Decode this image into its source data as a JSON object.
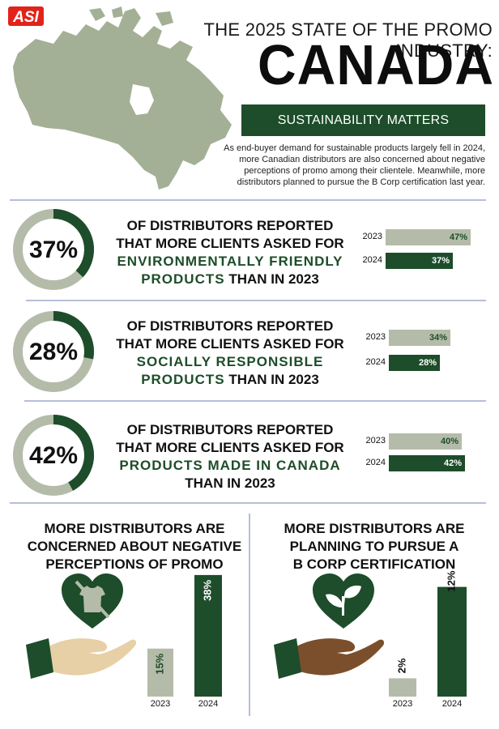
{
  "logo": {
    "text": "ASI"
  },
  "header": {
    "title_line": "THE 2025 STATE OF THE PROMO INDUSTRY:",
    "big_title": "CANADA",
    "banner": "SUSTAINABILITY MATTERS",
    "intro": "As end-buyer demand for sustainable products largely fell in 2024, more Canadian distributors are also concerned about negative perceptions of promo among their clientele. Meanwhile, more distributors planned to pursue the B Corp certification last year."
  },
  "colors": {
    "green": "#1d4d2a",
    "gray": "#b4bca9",
    "map": "#a4b096",
    "divider": "#b7bfd6",
    "hand_light": "#e7cfa6",
    "hand_dark": "#7b4f2c"
  },
  "stats": [
    {
      "percent": "37%",
      "line1": "OF DISTRIBUTORS REPORTED",
      "line2": "THAT MORE CLIENTS ASKED FOR",
      "highlight1": "ENVIRONMENTALLY FRIENDLY",
      "highlight2": "PRODUCTS",
      "tail": " THAN IN 2023",
      "line4": ""
    },
    {
      "percent": "28%",
      "line1": "OF DISTRIBUTORS REPORTED",
      "line2": "THAT MORE CLIENTS ASKED FOR",
      "highlight1": "SOCIALLY RESPONSIBLE",
      "highlight2": "PRODUCTS",
      "tail": " THAN IN 2023",
      "line4": ""
    },
    {
      "percent": "42%",
      "line1": "OF DISTRIBUTORS REPORTED",
      "line2": "THAT MORE CLIENTS ASKED FOR",
      "highlight1": "",
      "highlight2": "PRODUCTS MADE IN CANADA",
      "tail": "",
      "line4": "THAN IN 2023"
    }
  ],
  "bottom": {
    "left_title": [
      "MORE DISTRIBUTORS ARE",
      "CONCERNED ABOUT NEGATIVE",
      "PERCEPTIONS OF PROMO"
    ],
    "right_title": [
      "MORE DISTRIBUTORS ARE",
      "PLANNING TO PURSUE A",
      "B CORP CERTIFICATION"
    ]
  },
  "chart_data": [
    {
      "type": "bar",
      "orientation": "horizontal",
      "categories": [
        "2023",
        "2024"
      ],
      "values": [
        47,
        37
      ],
      "labels": [
        "47%",
        "37%"
      ],
      "xlim": [
        0,
        50
      ]
    },
    {
      "type": "bar",
      "orientation": "horizontal",
      "categories": [
        "2023",
        "2024"
      ],
      "values": [
        34,
        28
      ],
      "labels": [
        "34%",
        "28%"
      ],
      "xlim": [
        0,
        50
      ]
    },
    {
      "type": "bar",
      "orientation": "horizontal",
      "categories": [
        "2023",
        "2024"
      ],
      "values": [
        40,
        42
      ],
      "labels": [
        "40%",
        "42%"
      ],
      "xlim": [
        0,
        50
      ]
    },
    {
      "type": "bar",
      "orientation": "vertical",
      "categories": [
        "2023",
        "2024"
      ],
      "values": [
        15,
        38
      ],
      "labels": [
        "15%",
        "38%"
      ],
      "ylim": [
        0,
        40
      ]
    },
    {
      "type": "bar",
      "orientation": "vertical",
      "categories": [
        "2023",
        "2024"
      ],
      "values": [
        2,
        12
      ],
      "labels": [
        "2%",
        "12%"
      ],
      "ylim": [
        0,
        14
      ]
    },
    {
      "type": "pie",
      "values": [
        37,
        63
      ],
      "label": "37%"
    },
    {
      "type": "pie",
      "values": [
        28,
        72
      ],
      "label": "28%"
    },
    {
      "type": "pie",
      "values": [
        42,
        58
      ],
      "label": "42%"
    }
  ]
}
